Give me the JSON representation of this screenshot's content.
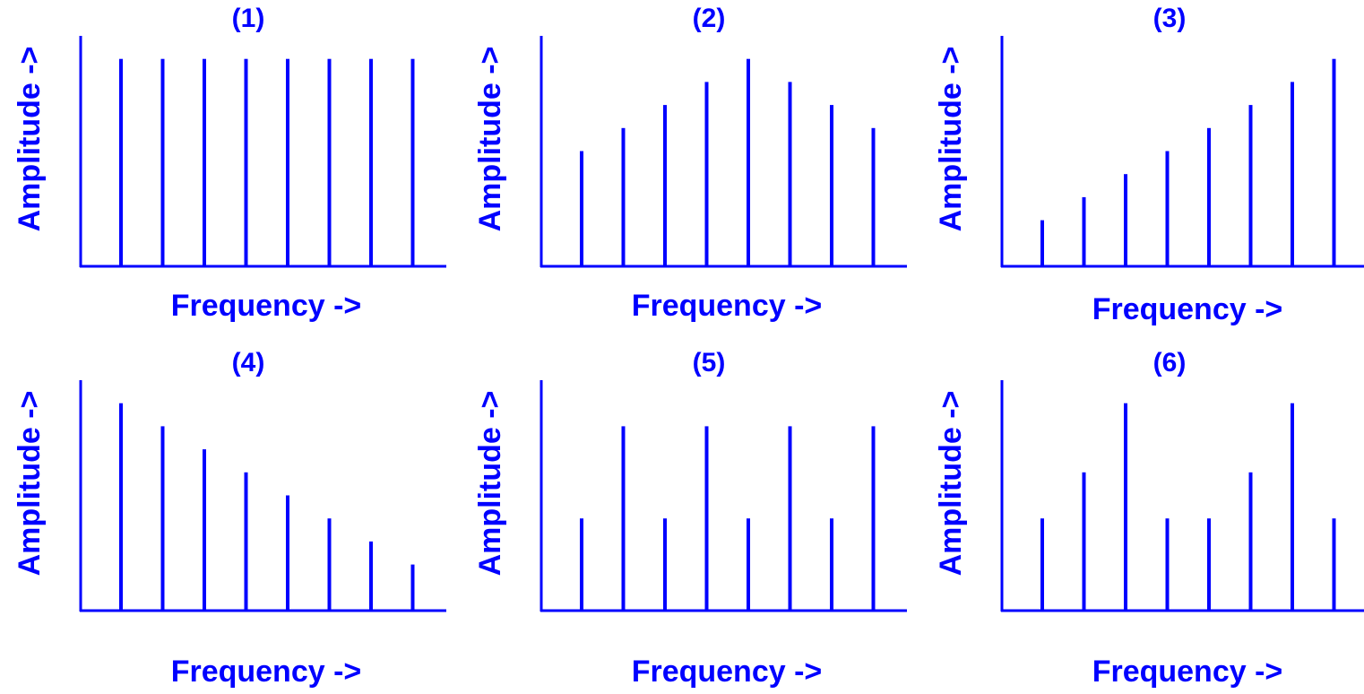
{
  "colors": {
    "ink": "#0000ff",
    "background": "#ffffff"
  },
  "chart_data": [
    {
      "type": "bar",
      "title": "(1)",
      "xlabel": "Frequency ->",
      "ylabel": "Amplitude ->",
      "values": [
        9,
        9,
        9,
        9,
        9,
        9,
        9,
        9
      ],
      "ylim": [
        0,
        10
      ],
      "grid": false
    },
    {
      "type": "bar",
      "title": "(2)",
      "xlabel": "Frequency ->",
      "ylabel": "Amplitude ->",
      "values": [
        5,
        6,
        7,
        8,
        9,
        8,
        7,
        6
      ],
      "ylim": [
        0,
        10
      ],
      "grid": false
    },
    {
      "type": "bar",
      "title": "(3)",
      "xlabel": "Frequency ->",
      "ylabel": "Amplitude ->",
      "values": [
        2,
        3,
        4,
        5,
        6,
        7,
        8,
        9
      ],
      "ylim": [
        0,
        10
      ],
      "grid": false
    },
    {
      "type": "bar",
      "title": "(4)",
      "xlabel": "Frequency ->",
      "ylabel": "Amplitude ->",
      "values": [
        9,
        8,
        7,
        6,
        5,
        4,
        3,
        2
      ],
      "ylim": [
        0,
        10
      ],
      "grid": false
    },
    {
      "type": "bar",
      "title": "(5)",
      "xlabel": "Frequency ->",
      "ylabel": "Amplitude ->",
      "values": [
        4,
        8,
        4,
        8,
        4,
        8,
        4,
        8
      ],
      "ylim": [
        0,
        10
      ],
      "grid": false
    },
    {
      "type": "bar",
      "title": "(6)",
      "xlabel": "Frequency ->",
      "ylabel": "Amplitude ->",
      "values": [
        4,
        6,
        9,
        4,
        4,
        6,
        9,
        4
      ],
      "ylim": [
        0,
        10
      ],
      "grid": false
    }
  ]
}
